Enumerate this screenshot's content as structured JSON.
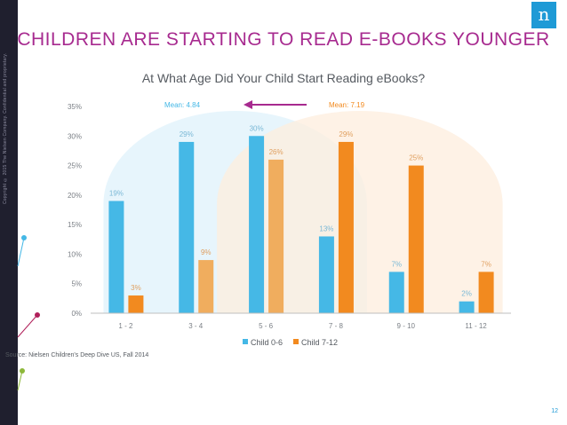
{
  "slide": {
    "title": "CHILDREN ARE STARTING TO READ E-BOOKS YOUNGER",
    "logo_letter": "n",
    "copyright": "Copyright © 2015 The Nielsen Company. Confidential and proprietary.",
    "source": "Source: Nielsen Children's Deep Dive US, Fall 2014",
    "page_number": "12"
  },
  "colors": {
    "title": "#a72a8f",
    "child_0_6": "#45b8e6",
    "child_7_12": "#f28a1f",
    "arrow": "#a72a8f"
  },
  "chart_data": {
    "type": "bar",
    "title": "At What Age Did Your Child Start Reading eBooks?",
    "categories": [
      "1 - 2",
      "3 - 4",
      "5 - 6",
      "7 - 8",
      "9 - 10",
      "11 - 12"
    ],
    "series": [
      {
        "name": "Child 0-6",
        "values": [
          19,
          29,
          30,
          13,
          7,
          2
        ],
        "labels": [
          "19%",
          "29%",
          "30%",
          "13%",
          "7%",
          "2%"
        ]
      },
      {
        "name": "Child 7-12",
        "values": [
          3,
          9,
          26,
          29,
          25,
          7
        ],
        "labels": [
          "3%",
          "9%",
          "26%",
          "29%",
          "25%",
          "7%"
        ]
      }
    ],
    "ylim": [
      0,
      35
    ],
    "yticks": [
      "0%",
      "5%",
      "10%",
      "15%",
      "20%",
      "25%",
      "30%",
      "35%"
    ],
    "annotations": {
      "mean_0_6": "Mean: 4.84",
      "mean_7_12": "Mean: 7.19"
    },
    "legend_position": "bottom",
    "grid": false
  }
}
